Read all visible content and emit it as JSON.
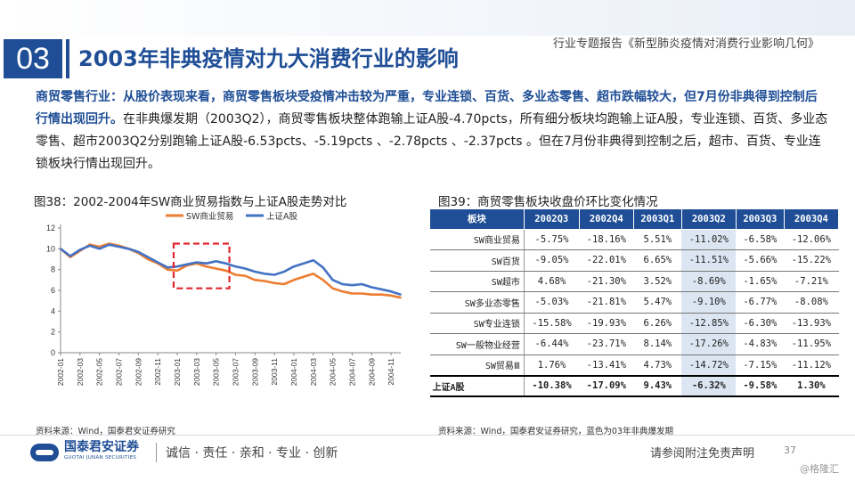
{
  "header": {
    "section_number": "03",
    "title": "2003年非典疫情对九大消费行业的影响",
    "report_title": "行业专题报告《新型肺炎疫情对消费行业影响几何》"
  },
  "paragraph": {
    "highlight": "商贸零售行业：从股价表现来看，商贸零售板块受疫情冲击较为严重，专业连锁、百货、多业态零售、超市跌幅较大，但7月份非典得到控制后行情出现回升。",
    "body": "在非典爆发期（2003Q2），商贸零售板块整体跑输上证A股-4.70pcts，所有细分板块均跑输上证A股，专业连锁、百货、多业态零售、超市2003Q2分别跑输上证A股-6.53pcts、-5.19pcts 、-2.78pcts 、-2.37pcts 。但在7月份非典得到控制之后，超市、百货、专业连锁板块行情出现回升。"
  },
  "figure38": {
    "title": "图38：2002-2004年SW商业贸易指数与上证A股走势对比",
    "source": "资料来源：Wind，国泰君安证券研究"
  },
  "figure39": {
    "title": "图39：商贸零售板块收盘价环比变化情况",
    "source": "资料来源：Wind，国泰君安证券研究，蓝色为03年非典爆发期"
  },
  "chart_data": {
    "type": "line",
    "title": "",
    "xlabel": "",
    "ylabel": "",
    "ylim": [
      0,
      12
    ],
    "yticks": [
      0,
      2,
      4,
      6,
      8,
      10,
      12
    ],
    "x": [
      "2002-01",
      "2002-02",
      "2002-03",
      "2002-04",
      "2002-05",
      "2002-06",
      "2002-07",
      "2002-08",
      "2002-09",
      "2002-10",
      "2002-11",
      "2002-12",
      "2003-01",
      "2003-02",
      "2003-03",
      "2003-04",
      "2003-05",
      "2003-06",
      "2003-07",
      "2003-08",
      "2003-09",
      "2003-10",
      "2003-11",
      "2003-12",
      "2004-01",
      "2004-02",
      "2004-03",
      "2004-04",
      "2004-05",
      "2004-06",
      "2004-07",
      "2004-08",
      "2004-09",
      "2004-10",
      "2004-11",
      "2004-12"
    ],
    "xtick_labels": [
      "2002-01",
      "2002-03",
      "2002-05",
      "2002-07",
      "2002-09",
      "2002-11",
      "2003-01",
      "2003-03",
      "2003-05",
      "2003-07",
      "2003-09",
      "2003-11",
      "2004-01",
      "2004-03",
      "2004-05",
      "2004-07",
      "2004-09",
      "2004-11"
    ],
    "legend_position": "top",
    "highlight_box_range": [
      "2003-01",
      "2003-06"
    ],
    "series": [
      {
        "name": "SW商业贸易",
        "color": "#ed7d31",
        "values": [
          10.0,
          9.2,
          9.8,
          10.4,
          10.2,
          10.5,
          10.3,
          10.0,
          9.6,
          9.0,
          8.6,
          8.0,
          7.9,
          8.4,
          8.6,
          8.3,
          8.1,
          7.9,
          7.5,
          7.4,
          7.0,
          6.9,
          6.7,
          6.6,
          7.0,
          7.3,
          7.6,
          7.0,
          6.2,
          5.9,
          5.7,
          5.7,
          5.6,
          5.6,
          5.5,
          5.3
        ]
      },
      {
        "name": "上证A股",
        "color": "#4472c4",
        "values": [
          10.0,
          9.3,
          9.9,
          10.3,
          10.0,
          10.4,
          10.2,
          10.0,
          9.7,
          9.2,
          8.7,
          8.2,
          8.3,
          8.5,
          8.7,
          8.6,
          8.8,
          8.6,
          8.3,
          8.1,
          7.8,
          7.6,
          7.5,
          7.8,
          8.3,
          8.6,
          8.9,
          8.2,
          7.0,
          6.6,
          6.5,
          6.6,
          6.3,
          6.1,
          5.9,
          5.6
        ]
      }
    ]
  },
  "table": {
    "headers": [
      "板块",
      "2002Q3",
      "2002Q4",
      "2003Q1",
      "2003Q2",
      "2003Q3",
      "2003Q4"
    ],
    "rows": [
      [
        "SW商业贸易",
        "-5.75%",
        "-18.16%",
        "5.51%",
        "-11.02%",
        "-6.58%",
        "-12.06%"
      ],
      [
        "SW百货",
        "-9.05%",
        "-22.01%",
        "6.65%",
        "-11.51%",
        "-5.66%",
        "-15.22%"
      ],
      [
        "SW超市",
        "4.68%",
        "-21.30%",
        "3.52%",
        "-8.69%",
        "-1.65%",
        "-7.21%"
      ],
      [
        "SW多业态零售",
        "-5.03%",
        "-21.81%",
        "5.47%",
        "-9.10%",
        "-6.77%",
        "-8.08%"
      ],
      [
        "SW专业连锁",
        "-15.58%",
        "-19.93%",
        "6.26%",
        "-12.85%",
        "-6.30%",
        "-13.93%"
      ],
      [
        "SW一般物业经营",
        "-6.44%",
        "-23.71%",
        "8.14%",
        "-17.26%",
        "-4.83%",
        "-11.95%"
      ],
      [
        "SW贸易Ⅲ",
        "1.76%",
        "-13.41%",
        "4.73%",
        "-14.72%",
        "-7.15%",
        "-11.12%"
      ]
    ],
    "total_row": [
      "上证A股",
      "-10.38%",
      "-17.09%",
      "9.43%",
      "-6.32%",
      "-9.58%",
      "1.30%"
    ],
    "highlight_column_color": "#dce6f2"
  },
  "footer": {
    "logo_cn": "国泰君安证券",
    "logo_en": "GUOTAI JUNAN SECURITIES",
    "slogan": "诚信 · 责任 · 亲和 · 专业 · 创新",
    "disclaimer": "请参阅附注免责声明",
    "page_number": "37",
    "watermark": "@格隆汇"
  },
  "colors": {
    "brand": "#1f4e96",
    "box": "#e0262d"
  }
}
